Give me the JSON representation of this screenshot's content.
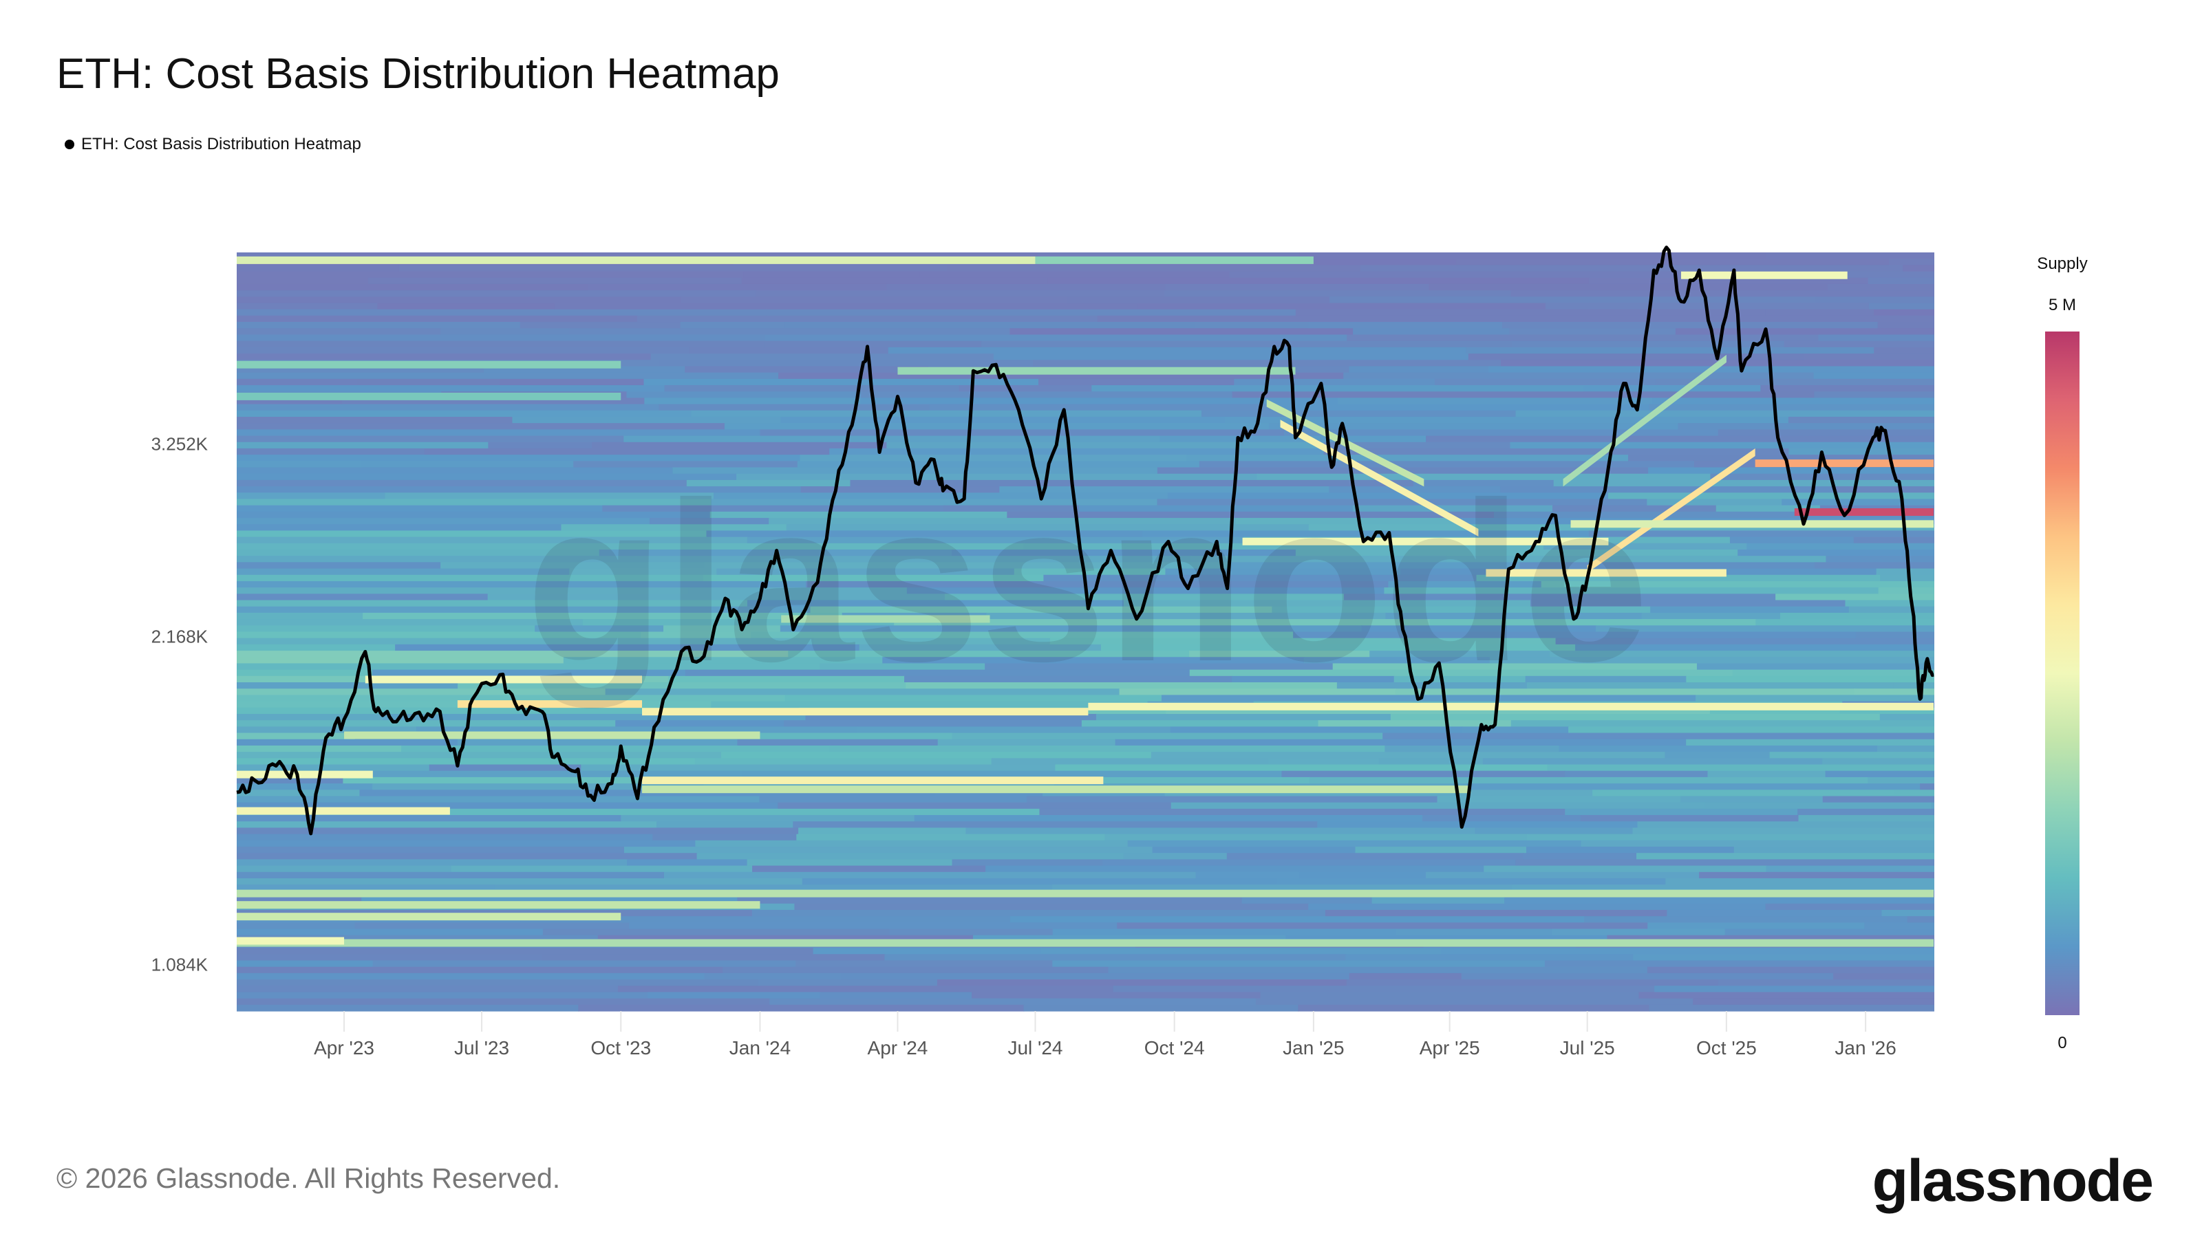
{
  "title": "ETH: Cost Basis Distribution Heatmap",
  "legend": {
    "label": "ETH: Cost Basis Distribution Heatmap",
    "marker_color": "#000000"
  },
  "footer": {
    "copyright": "© 2026 Glassnode. All Rights Reserved.",
    "logo": "glassnode"
  },
  "watermark": "glassnode",
  "colorbar": {
    "title": "Supply",
    "max_label": "5 M",
    "min_label": "0",
    "stops": [
      "#7b73b5",
      "#5b98c8",
      "#64bdc0",
      "#8ed3b8",
      "#c2e5ab",
      "#f1f8b9",
      "#fde9a0",
      "#fdc483",
      "#f4896a",
      "#de6472",
      "#b8386a"
    ]
  },
  "chart_data": {
    "type": "heatmap",
    "title": "ETH: Cost Basis Distribution Heatmap",
    "y_scale": "log",
    "ylim": [
      983,
      4880
    ],
    "xlim": [
      "2023-01-20",
      "2026-02-15"
    ],
    "grid": false,
    "colorbar_label": "Supply",
    "colorbar_range": [
      0,
      5000000
    ],
    "y_ticks": [
      {
        "value": 3252,
        "label": "3.252K"
      },
      {
        "value": 2168,
        "label": "2.168K"
      },
      {
        "value": 1084,
        "label": "1.084K"
      }
    ],
    "x_ticks": [
      {
        "date": "2023-04-01",
        "label": "Apr '23"
      },
      {
        "date": "2023-07-01",
        "label": "Jul '23"
      },
      {
        "date": "2023-10-01",
        "label": "Oct '23"
      },
      {
        "date": "2024-01-01",
        "label": "Jan '24"
      },
      {
        "date": "2024-04-01",
        "label": "Apr '24"
      },
      {
        "date": "2024-07-01",
        "label": "Jul '24"
      },
      {
        "date": "2024-10-01",
        "label": "Oct '24"
      },
      {
        "date": "2025-01-01",
        "label": "Jan '25"
      },
      {
        "date": "2025-04-01",
        "label": "Apr '25"
      },
      {
        "date": "2025-07-01",
        "label": "Jul '25"
      },
      {
        "date": "2025-10-01",
        "label": "Oct '25"
      },
      {
        "date": "2026-01-01",
        "label": "Jan '26"
      }
    ],
    "bands": [
      {
        "price": 4800,
        "price_end": 4800,
        "start": "2023-01-20",
        "end": "2024-07-01",
        "intensity": 0.45
      },
      {
        "price": 4800,
        "price_end": 4800,
        "start": "2024-07-01",
        "end": "2025-01-01",
        "intensity": 0.3
      },
      {
        "price": 4650,
        "price_end": 4650,
        "start": "2025-09-01",
        "end": "2025-12-20",
        "intensity": 0.5
      },
      {
        "price": 3850,
        "price_end": 3850,
        "start": "2023-01-20",
        "end": "2023-10-01",
        "intensity": 0.28
      },
      {
        "price": 3800,
        "price_end": 3800,
        "start": "2024-04-01",
        "end": "2024-12-20",
        "intensity": 0.32
      },
      {
        "price": 3600,
        "price_end": 3600,
        "start": "2023-01-20",
        "end": "2023-10-01",
        "intensity": 0.25
      },
      {
        "price": 3400,
        "price_end": 2700,
        "start": "2024-12-10",
        "end": "2025-04-20",
        "intensity": 0.55
      },
      {
        "price": 3550,
        "price_end": 3000,
        "start": "2024-12-01",
        "end": "2025-03-15",
        "intensity": 0.4
      },
      {
        "price": 2500,
        "price_end": 3200,
        "start": "2025-07-01",
        "end": "2025-10-20",
        "intensity": 0.62
      },
      {
        "price": 3000,
        "price_end": 3900,
        "start": "2025-06-15",
        "end": "2025-10-01",
        "intensity": 0.35
      },
      {
        "price": 3126,
        "price_end": 3126,
        "start": "2025-10-20",
        "end": "2026-02-15",
        "intensity": 0.75
      },
      {
        "price": 2820,
        "price_end": 2820,
        "start": "2025-11-15",
        "end": "2026-02-15",
        "intensity": 0.95
      },
      {
        "price": 2750,
        "price_end": 2750,
        "start": "2025-06-20",
        "end": "2026-02-15",
        "intensity": 0.45
      },
      {
        "price": 2650,
        "price_end": 2650,
        "start": "2024-11-15",
        "end": "2025-07-15",
        "intensity": 0.5
      },
      {
        "price": 2480,
        "price_end": 2480,
        "start": "2025-04-25",
        "end": "2025-10-01",
        "intensity": 0.55
      },
      {
        "price": 2250,
        "price_end": 2250,
        "start": "2024-01-15",
        "end": "2024-06-01",
        "intensity": 0.35
      },
      {
        "price": 1980,
        "price_end": 1980,
        "start": "2023-04-15",
        "end": "2023-10-15",
        "intensity": 0.5
      },
      {
        "price": 1880,
        "price_end": 1880,
        "start": "2023-06-15",
        "end": "2023-10-15",
        "intensity": 0.62
      },
      {
        "price": 1850,
        "price_end": 1850,
        "start": "2023-10-15",
        "end": "2024-08-05",
        "intensity": 0.55
      },
      {
        "price": 1870,
        "price_end": 1870,
        "start": "2024-08-05",
        "end": "2026-02-15",
        "intensity": 0.52
      },
      {
        "price": 1760,
        "price_end": 1760,
        "start": "2023-04-01",
        "end": "2024-01-01",
        "intensity": 0.4
      },
      {
        "price": 1600,
        "price_end": 1600,
        "start": "2023-10-15",
        "end": "2024-08-15",
        "intensity": 0.55
      },
      {
        "price": 1570,
        "price_end": 1570,
        "start": "2023-10-15",
        "end": "2025-04-15",
        "intensity": 0.4
      },
      {
        "price": 1620,
        "price_end": 1620,
        "start": "2023-01-20",
        "end": "2023-04-20",
        "intensity": 0.5
      },
      {
        "price": 1500,
        "price_end": 1500,
        "start": "2023-01-20",
        "end": "2023-06-10",
        "intensity": 0.52
      },
      {
        "price": 1260,
        "price_end": 1260,
        "start": "2023-01-20",
        "end": "2026-02-15",
        "intensity": 0.38
      },
      {
        "price": 1230,
        "price_end": 1230,
        "start": "2023-01-20",
        "end": "2024-01-01",
        "intensity": 0.4
      },
      {
        "price": 1200,
        "price_end": 1200,
        "start": "2023-01-20",
        "end": "2023-10-01",
        "intensity": 0.42
      },
      {
        "price": 1135,
        "price_end": 1135,
        "start": "2023-01-20",
        "end": "2026-02-15",
        "intensity": 0.36
      },
      {
        "price": 1140,
        "price_end": 1140,
        "start": "2023-01-20",
        "end": "2023-04-01",
        "intensity": 0.5
      }
    ],
    "series": [
      {
        "color": "#000000",
        "points": [
          [
            "2023-01-20",
            1560
          ],
          [
            "2023-02-01",
            1600
          ],
          [
            "2023-02-15",
            1650
          ],
          [
            "2023-03-01",
            1620
          ],
          [
            "2023-03-10",
            1430
          ],
          [
            "2023-03-20",
            1750
          ],
          [
            "2023-04-01",
            1820
          ],
          [
            "2023-04-15",
            2100
          ],
          [
            "2023-04-22",
            1850
          ],
          [
            "2023-05-01",
            1830
          ],
          [
            "2023-05-15",
            1820
          ],
          [
            "2023-06-01",
            1860
          ],
          [
            "2023-06-15",
            1650
          ],
          [
            "2023-06-25",
            1900
          ],
          [
            "2023-07-13",
            2000
          ],
          [
            "2023-07-25",
            1860
          ],
          [
            "2023-08-10",
            1850
          ],
          [
            "2023-08-18",
            1680
          ],
          [
            "2023-09-01",
            1630
          ],
          [
            "2023-09-11",
            1550
          ],
          [
            "2023-09-25",
            1590
          ],
          [
            "2023-10-01",
            1720
          ],
          [
            "2023-10-12",
            1540
          ],
          [
            "2023-10-23",
            1790
          ],
          [
            "2023-11-10",
            2100
          ],
          [
            "2023-11-25",
            2080
          ],
          [
            "2023-12-09",
            2350
          ],
          [
            "2023-12-20",
            2200
          ],
          [
            "2024-01-01",
            2350
          ],
          [
            "2024-01-12",
            2600
          ],
          [
            "2024-01-23",
            2200
          ],
          [
            "2024-02-08",
            2430
          ],
          [
            "2024-02-20",
            2950
          ],
          [
            "2024-03-04",
            3500
          ],
          [
            "2024-03-12",
            4000
          ],
          [
            "2024-03-20",
            3200
          ],
          [
            "2024-04-01",
            3600
          ],
          [
            "2024-04-13",
            3000
          ],
          [
            "2024-04-25",
            3150
          ],
          [
            "2024-05-01",
            2950
          ],
          [
            "2024-05-15",
            2900
          ],
          [
            "2024-05-21",
            3800
          ],
          [
            "2024-06-05",
            3850
          ],
          [
            "2024-06-20",
            3500
          ],
          [
            "2024-07-05",
            2900
          ],
          [
            "2024-07-20",
            3500
          ],
          [
            "2024-08-05",
            2300
          ],
          [
            "2024-08-20",
            2600
          ],
          [
            "2024-09-06",
            2250
          ],
          [
            "2024-09-27",
            2650
          ],
          [
            "2024-10-10",
            2400
          ],
          [
            "2024-10-29",
            2650
          ],
          [
            "2024-11-05",
            2400
          ],
          [
            "2024-11-12",
            3300
          ],
          [
            "2024-11-25",
            3400
          ],
          [
            "2024-12-06",
            4000
          ],
          [
            "2024-12-16",
            4000
          ],
          [
            "2024-12-20",
            3300
          ],
          [
            "2025-01-06",
            3700
          ],
          [
            "2025-01-13",
            3100
          ],
          [
            "2025-01-20",
            3400
          ],
          [
            "2025-02-03",
            2650
          ],
          [
            "2025-02-20",
            2700
          ],
          [
            "2025-03-01",
            2200
          ],
          [
            "2025-03-11",
            1900
          ],
          [
            "2025-03-25",
            2050
          ],
          [
            "2025-04-09",
            1450
          ],
          [
            "2025-04-22",
            1800
          ],
          [
            "2025-05-01",
            1800
          ],
          [
            "2025-05-10",
            2500
          ],
          [
            "2025-05-28",
            2650
          ],
          [
            "2025-06-10",
            2800
          ],
          [
            "2025-06-22",
            2250
          ],
          [
            "2025-07-01",
            2450
          ],
          [
            "2025-07-15",
            3100
          ],
          [
            "2025-07-25",
            3700
          ],
          [
            "2025-08-03",
            3500
          ],
          [
            "2025-08-14",
            4700
          ],
          [
            "2025-08-24",
            4900
          ],
          [
            "2025-09-01",
            4400
          ],
          [
            "2025-09-13",
            4700
          ],
          [
            "2025-09-25",
            3900
          ],
          [
            "2025-10-06",
            4700
          ],
          [
            "2025-10-11",
            3800
          ],
          [
            "2025-10-27",
            4150
          ],
          [
            "2025-11-04",
            3300
          ],
          [
            "2025-11-21",
            2750
          ],
          [
            "2025-12-03",
            3200
          ],
          [
            "2025-12-18",
            2800
          ],
          [
            "2026-01-06",
            3300
          ],
          [
            "2026-01-14",
            3350
          ],
          [
            "2026-01-25",
            2900
          ],
          [
            "2026-02-01",
            2300
          ],
          [
            "2026-02-06",
            1900
          ],
          [
            "2026-02-10",
            2050
          ],
          [
            "2026-02-15",
            2000
          ]
        ]
      }
    ]
  }
}
